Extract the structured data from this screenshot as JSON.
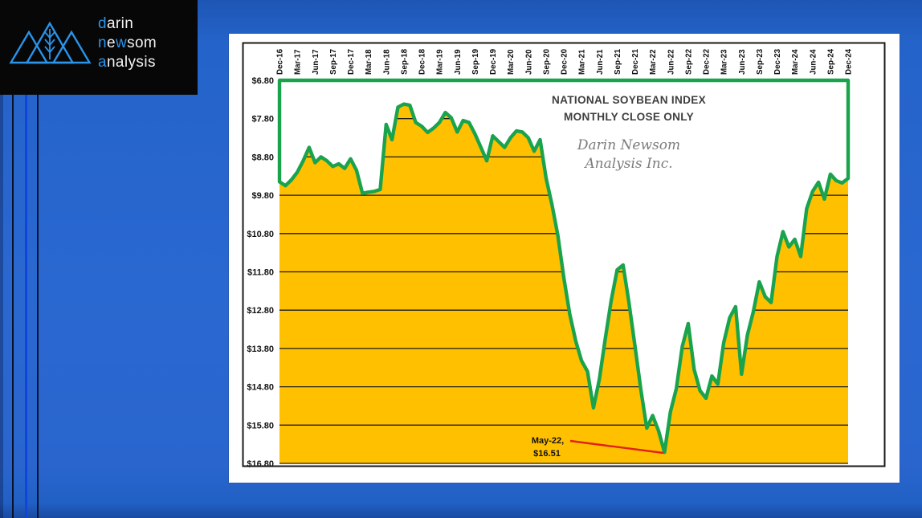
{
  "desktop": {
    "background_color": "#2a68d1",
    "stripe_blue_color": "#1243dd",
    "stripe_dark_color": "#0a1226"
  },
  "logo": {
    "background": "#070707",
    "accent_color": "#2a93ea",
    "text_color": "#f2f2f2",
    "wordmark_lines": [
      [
        {
          "text": "d",
          "accent": true
        },
        {
          "text": "arin",
          "accent": false
        }
      ],
      [
        {
          "text": "n",
          "accent": true
        },
        {
          "text": "e",
          "accent": false
        },
        {
          "text": "w",
          "accent": true
        },
        {
          "text": "som",
          "accent": false
        }
      ],
      [
        {
          "text": "a",
          "accent": true
        },
        {
          "text": "nalysis",
          "accent": false
        }
      ]
    ],
    "mark": "three-triangles-with-wheat-stalk"
  },
  "chart": {
    "title_line1": "NATIONAL SOYBEAN INDEX",
    "title_line2": "MONTHLY CLOSE ONLY",
    "watermark_line1": "Darin Newsom",
    "watermark_line2": "Analysis Inc.",
    "annotation": {
      "line1": "May-22,",
      "line2": "$16.51",
      "callout_color": "#e02218"
    },
    "colors": {
      "line": "#1aa34d",
      "fill": "#ffc000",
      "grid": "#1a1a1a",
      "frame": "#1a1a1a"
    },
    "chart_data": {
      "type": "area",
      "title": "NATIONAL SOYBEAN INDEX MONTHLY CLOSE ONLY",
      "series_name": "National Soybean Index monthly close ($/bu)",
      "frequency": "monthly",
      "x_start": "Dec-16",
      "x_end": "Dec-24",
      "x_tick_interval_months": 3,
      "x_tick_labels": [
        "Dec-16",
        "Mar-17",
        "Jun-17",
        "Sep-17",
        "Dec-17",
        "Mar-18",
        "Jun-18",
        "Sep-18",
        "Dec-18",
        "Mar-19",
        "Jun-19",
        "Sep-19",
        "Dec-19",
        "Mar-20",
        "Jun-20",
        "Sep-20",
        "Dec-20",
        "Mar-21",
        "Jun-21",
        "Sep-21",
        "Dec-21",
        "Mar-22",
        "Jun-22",
        "Sep-22",
        "Dec-22",
        "Mar-23",
        "Jun-23",
        "Sep-23",
        "Dec-23",
        "Mar-24",
        "Jun-24",
        "Sep-24",
        "Dec-24"
      ],
      "y_axis_labels": [
        "$6.80",
        "$7.80",
        "$8.80",
        "$9.80",
        "$10.80",
        "$11.80",
        "$12.80",
        "$13.80",
        "$14.80",
        "$15.80",
        "$16.80"
      ],
      "y_min": 6.8,
      "y_max": 16.8,
      "y_axis_inverted": true,
      "grid": "horizontal-dollar-lines-over-fill-only",
      "values": [
        9.45,
        9.55,
        9.4,
        9.2,
        8.9,
        8.55,
        8.95,
        8.8,
        8.9,
        9.05,
        8.98,
        9.1,
        8.85,
        9.15,
        9.75,
        9.72,
        9.7,
        9.65,
        7.95,
        8.35,
        7.5,
        7.42,
        7.45,
        7.9,
        8.0,
        8.16,
        8.05,
        7.9,
        7.64,
        7.78,
        8.15,
        7.85,
        7.9,
        8.2,
        8.55,
        8.9,
        8.25,
        8.4,
        8.55,
        8.3,
        8.12,
        8.15,
        8.3,
        8.65,
        8.35,
        9.35,
        10.05,
        10.85,
        11.95,
        12.9,
        13.6,
        14.12,
        14.4,
        15.35,
        14.6,
        13.55,
        12.55,
        11.75,
        11.62,
        12.6,
        13.72,
        14.87,
        15.88,
        15.55,
        15.95,
        16.51,
        15.45,
        14.85,
        13.75,
        13.15,
        14.35,
        14.9,
        15.1,
        14.52,
        14.73,
        13.65,
        13.0,
        12.71,
        14.47,
        13.45,
        12.84,
        12.06,
        12.45,
        12.6,
        11.4,
        10.75,
        11.15,
        10.95,
        11.4,
        10.15,
        9.7,
        9.46,
        9.9,
        9.25,
        9.42,
        9.48,
        9.36
      ],
      "annotation_point": {
        "x": "May-22",
        "value": 16.51,
        "label": "May-22, $16.51"
      }
    }
  }
}
